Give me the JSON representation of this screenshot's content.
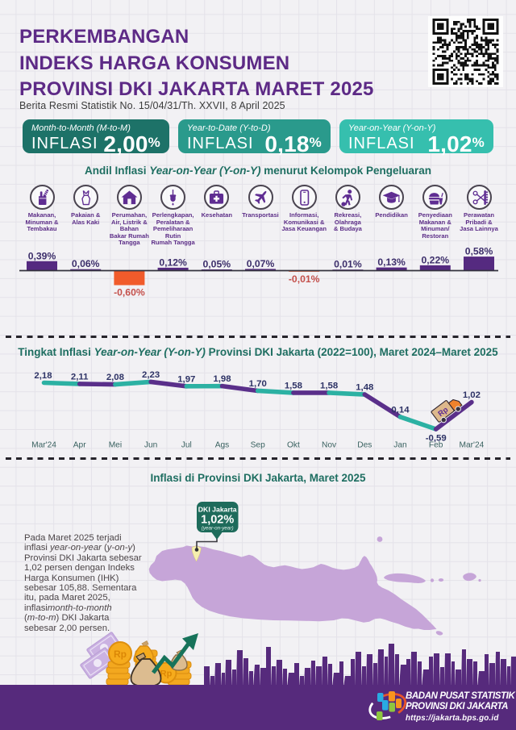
{
  "header": {
    "title_lines": [
      "PERKEMBANGAN",
      "INDEKS HARGA KONSUMEN",
      "PROVINSI DKI JAKARTA MARET 2025"
    ],
    "subtitle": "Berita Resmi Statistik No. 15/04/31/Th. XXVII, 8 April 2025",
    "qr_icon": "qr-code"
  },
  "stats": [
    {
      "period_label": "Month-to-Month (M-to-M)",
      "metric": "INFLASI",
      "value": "2,00",
      "unit": "%",
      "color": "#1d7268"
    },
    {
      "period_label": "Year-to-Date (Y-to-D)",
      "metric": "INFLASI",
      "value": "0,18",
      "unit": "%",
      "color": "#2a9a8c"
    },
    {
      "period_label": "Year-on-Year (Y-on-Y)",
      "metric": "INFLASI",
      "value": "1,02",
      "unit": "%",
      "color": "#36bfae"
    }
  ],
  "section_contribution": {
    "title_prefix": "Andil Inflasi ",
    "title_italic": "Year-on-Year (Y-on-Y)",
    "title_suffix": " menurut Kelompok Pengeluaran"
  },
  "section_line": {
    "title_prefix": "Tingkat Inflasi ",
    "title_italic": "Year-on-Year (Y-on-Y)",
    "title_suffix": " Provinsi DKI Jakarta (2022=100), Maret 2024–Maret 2025"
  },
  "section_map": {
    "title": "Inflasi di Provinsi DKI Jakarta, Maret 2025",
    "callout": {
      "region": "DKI Jakarta",
      "value": "1,02%",
      "note": "(year-on-year)"
    },
    "paragraph": "Pada Maret 2025 terjadi\ninflasi *year-on-year* (*y-on-y*)\nProvinsi DKI Jakarta sebesar\n1,02 persen dengan Indeks\nHarga Konsumen (IHK)\nsebesar 105,88. Sementara\nitu, pada Maret 2025,\ninflasi*month-to-month*\n(*m-to-m*) DKI Jakarta\nsebesar 2,00 persen."
  },
  "chart_data": [
    {
      "type": "bar",
      "title": "Andil Inflasi Year-on-Year (Y-on-Y) menurut Kelompok Pengeluaran",
      "unit": "percent contribution",
      "categories": [
        "Makanan, Minuman & Tembakau",
        "Pakaian & Alas Kaki",
        "Perumahan, Air, Listrik & Bahan Bakar Rumah Tangga",
        "Perlengkapan, Peralatan & Pemeliharaan Rutin Rumah Tangga",
        "Kesehatan",
        "Transportasi",
        "Informasi, Komunikasi & Jasa Keuangan",
        "Rekreasi, Olahraga & Budaya",
        "Pendidikan",
        "Penyediaan Makanan & Minuman/Restoran",
        "Perawatan Pribadi & Jasa Lainnya"
      ],
      "label_lines": [
        [
          "Makanan,",
          "Minuman &",
          "Tembakau"
        ],
        [
          "Pakaian &",
          "Alas Kaki"
        ],
        [
          "Perumahan,",
          "Air, Listrik &",
          "Bahan",
          "Bakar Rumah",
          "Tangga"
        ],
        [
          "Perlengkapan,",
          "Peralatan &",
          "Pemeliharaan",
          "Rutin",
          "Rumah Tangga"
        ],
        [
          "Kesehatan"
        ],
        [
          "Transportasi"
        ],
        [
          "Informasi,",
          "Komunikasi &",
          "Jasa Keuangan"
        ],
        [
          "Rekreasi,",
          "Olahraga",
          "& Budaya"
        ],
        [
          "Pendidikan"
        ],
        [
          "Penyediaan",
          "Makanan &",
          "Minuman/",
          "Restoran"
        ],
        [
          "Perawatan",
          "Pribadi &",
          "Jasa Lainnya"
        ]
      ],
      "icons": [
        "food-basket-icon",
        "dress-icon",
        "house-icon",
        "hanging-plug-icon",
        "first-aid-icon",
        "plane-icon",
        "smartphone-icon",
        "sport-icon",
        "graduation-cap-icon",
        "restaurant-icon",
        "personal-care-icon"
      ],
      "values": [
        0.39,
        0.06,
        -0.6,
        0.12,
        0.05,
        0.07,
        -0.01,
        0.01,
        0.13,
        0.22,
        0.58
      ],
      "value_labels": [
        "0,39%",
        "0,06%",
        "-0,60%",
        "0,12%",
        "0,05%",
        "0,07%",
        "-0,01%",
        "0,01%",
        "0,13%",
        "0,22%",
        "0,58%"
      ],
      "positive_bar_color": "#552a80",
      "negative_bar_color": "#f15b2b",
      "positive_label_color": "#3d2f6b",
      "negative_label_color": "#c4504b",
      "axis_color": "#33323d"
    },
    {
      "type": "line",
      "title": "Tingkat Inflasi Year-on-Year (Y-on-Y) Provinsi DKI Jakarta (2022=100), Maret 2024–Maret 2025",
      "x": [
        "Mar'24",
        "Apr",
        "Mei",
        "Jun",
        "Jul",
        "Ags",
        "Sep",
        "Okt",
        "Nov",
        "Des",
        "Jan",
        "Feb",
        "Mar'24"
      ],
      "values": [
        2.18,
        2.11,
        2.08,
        2.23,
        1.97,
        1.98,
        1.7,
        1.58,
        1.58,
        1.48,
        0.14,
        -0.59,
        1.02
      ],
      "value_labels": [
        "2,18",
        "2,11",
        "2,08",
        "2,23",
        "1,97",
        "1,98",
        "1,70",
        "1,58",
        "1,58",
        "1,48",
        "0,14",
        "-0,59",
        "1,02"
      ],
      "segment_colors": [
        "#2cb1a3",
        "#5a2f8a"
      ],
      "label_color": "#2e3366",
      "month_label_color": "#38605f",
      "truck_icon": "delivery-truck-icon"
    }
  ],
  "decor": {
    "currency_label": "Rp"
  },
  "footer": {
    "org_line1": "BADAN PUSAT STATISTIK",
    "org_line2": "PROVINSI DKI JAKARTA",
    "website": "https://jakarta.bps.go.id",
    "logo_icon": "bps-logo"
  }
}
